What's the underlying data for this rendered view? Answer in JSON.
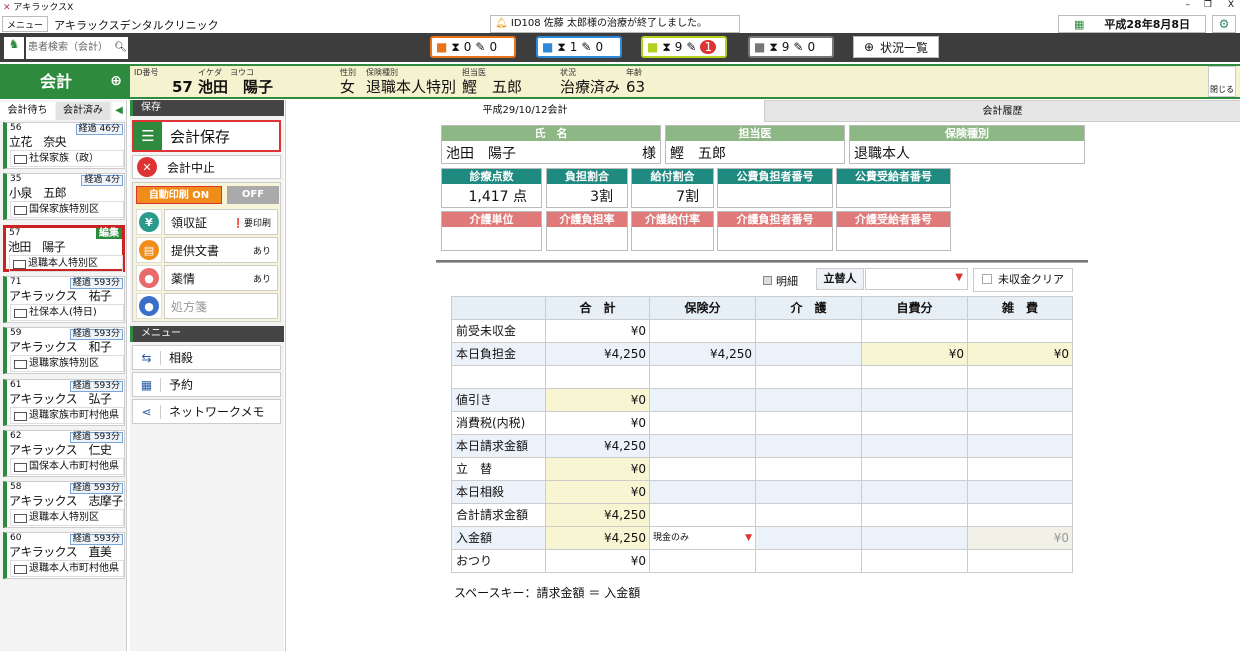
{
  "app": {
    "title": "アキラックスX",
    "menu": "メニュー",
    "clinic": "アキラックスデンタルクリニック",
    "notice": "ID108 佐藤 太郎様の治療が終了しました。",
    "date": "平成28年8月8日"
  },
  "toolbar": {
    "search_placeholder": "患者検索（会計）",
    "groups": [
      {
        "a": "0",
        "b": "0",
        "color": "#e8731a"
      },
      {
        "a": "1",
        "b": "0",
        "color": "#2d8ad8"
      },
      {
        "a": "9",
        "b": "1",
        "color": "#b6d020"
      },
      {
        "a": "9",
        "b": "0",
        "color": "#777777"
      }
    ],
    "status_list": "状況一覧"
  },
  "mode": {
    "label": "会計"
  },
  "patient": {
    "labels": {
      "id": "ID番号",
      "kana": "イケダ　ヨウコ",
      "sex": "性別",
      "ins": "保険種別",
      "doc": "担当医",
      "state": "状況",
      "age": "年齢"
    },
    "id": "57",
    "name": "池田　陽子",
    "sex": "女",
    "ins": "退職本人特別",
    "doc": "鰹　五郎",
    "state": "治療済み",
    "age": "63",
    "close": "閉じる"
  },
  "list": {
    "tabs": [
      "会計待ち",
      "会計済み"
    ],
    "elapsed": "経過",
    "items": [
      {
        "no": "56",
        "name": "立花　奈央",
        "time": "46分",
        "ins": "社保家族（政）"
      },
      {
        "no": "35",
        "name": "小泉　五郎",
        "time": "4分",
        "ins": "国保家族特別区"
      },
      {
        "no": "57",
        "name": "池田　陽子",
        "badge": "編集",
        "ins": "退職本人特別区",
        "selected": true
      },
      {
        "no": "71",
        "name": "アキラックス　祐子",
        "time": "593分",
        "ins": "社保本人(特日)"
      },
      {
        "no": "59",
        "name": "アキラックス　和子",
        "time": "593分",
        "ins": "退職家族特別区"
      },
      {
        "no": "61",
        "name": "アキラックス　弘子",
        "time": "593分",
        "ins": "退職家族市町村他県"
      },
      {
        "no": "62",
        "name": "アキラックス　仁史",
        "time": "593分",
        "ins": "国保本人市町村他県"
      },
      {
        "no": "58",
        "name": "アキラックス　志摩子",
        "time": "593分",
        "ins": "退職本人特別区"
      },
      {
        "no": "60",
        "name": "アキラックス　直美",
        "time": "593分",
        "ins": "退職本人市町村他県"
      }
    ]
  },
  "save_panel": {
    "title": "保存",
    "save": "会計保存",
    "cancel": "会計中止",
    "auto_on": "自動印刷 ON",
    "off": "OFF",
    "items": [
      {
        "label": "領収証",
        "status": "要印刷"
      },
      {
        "label": "提供文書",
        "status": "あり"
      },
      {
        "label": "薬情",
        "status": "あり"
      },
      {
        "label": "処方箋",
        "status": ""
      }
    ]
  },
  "menu_panel": {
    "title": "メニュー",
    "items": [
      "相殺",
      "予約",
      "ネットワークメモ"
    ]
  },
  "tabs": [
    "平成29/10/12会計",
    "会計履歴"
  ],
  "info": {
    "name_h": "氏　名",
    "name": "池田　陽子",
    "sama": "様",
    "doc_h": "担当医",
    "doc": "鰹　五郎",
    "ins_h": "保険種別",
    "ins": "退職本人",
    "row2": [
      {
        "h": "診療点数",
        "v": "1,417 点"
      },
      {
        "h": "負担割合",
        "v": "3割"
      },
      {
        "h": "給付割合",
        "v": "7割"
      },
      {
        "h": "公費負担者番号",
        "v": ""
      },
      {
        "h": "公費受給者番号",
        "v": ""
      }
    ],
    "row3": [
      {
        "h": "介護単位",
        "v": ""
      },
      {
        "h": "介護負担率",
        "v": ""
      },
      {
        "h": "介護給付率",
        "v": ""
      },
      {
        "h": "介護負担者番号",
        "v": ""
      },
      {
        "h": "介護受給者番号",
        "v": ""
      }
    ]
  },
  "controls": {
    "detail": "明細",
    "payer": "立替人",
    "payer_value": "",
    "clear": "未収金クリア"
  },
  "table": {
    "headers": [
      "",
      "合　計",
      "保険分",
      "介　護",
      "自費分",
      "雑　費"
    ],
    "rows": [
      {
        "label": "前受未収金",
        "cells": [
          "¥0",
          "",
          "",
          "",
          ""
        ]
      },
      {
        "label": "本日負担金",
        "cells": [
          "¥4,250",
          "¥4,250",
          "",
          "¥0",
          "¥0"
        ]
      },
      {
        "label": "",
        "cells": [
          "",
          "",
          "",
          "",
          ""
        ]
      },
      {
        "label": "値引き",
        "cells": [
          "¥0",
          "",
          "",
          "",
          ""
        ]
      },
      {
        "label": "消費税(内税)",
        "cells": [
          "¥0",
          "",
          "",
          "",
          ""
        ]
      },
      {
        "label": "本日請求金額",
        "cells": [
          "¥4,250",
          "",
          "",
          "",
          ""
        ]
      },
      {
        "label": "立　替",
        "cells": [
          "¥0",
          "",
          "",
          "",
          ""
        ]
      },
      {
        "label": "本日相殺",
        "cells": [
          "¥0",
          "",
          "",
          "",
          ""
        ]
      },
      {
        "label": "合計請求金額",
        "cells": [
          "¥4,250",
          "",
          "",
          "",
          ""
        ]
      },
      {
        "label": "入金額",
        "cells": [
          "¥4,250",
          "現金のみ",
          "",
          "",
          "¥0"
        ]
      },
      {
        "label": "おつり",
        "cells": [
          "¥0",
          "",
          "",
          "",
          ""
        ]
      }
    ]
  },
  "hint": "スペースキー：請求金額 ＝ 入金額"
}
